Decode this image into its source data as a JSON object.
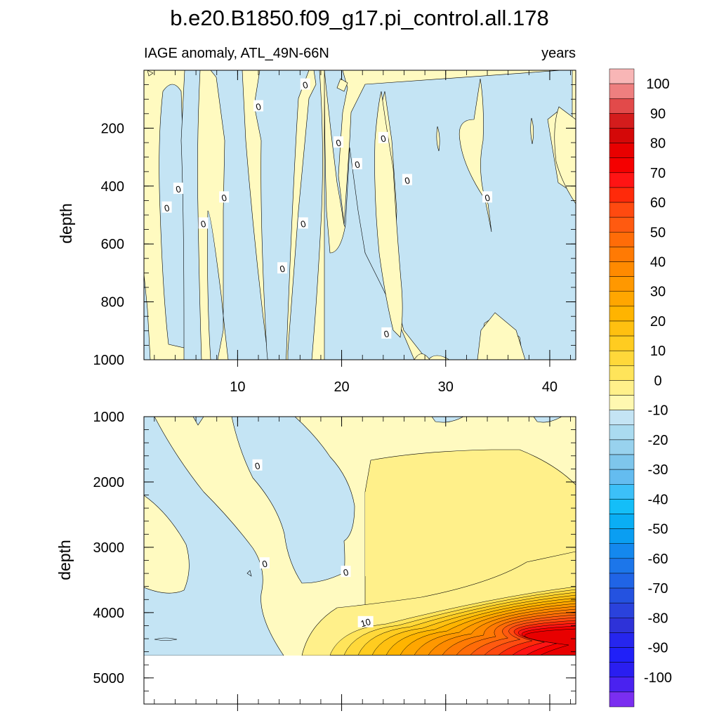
{
  "title": "b.e20.B1850.f09_g17.pi_control.all.178",
  "subtitle_left": "IAGE anomaly, ATL_49N-66N",
  "subtitle_right": "years",
  "chart_data": [
    {
      "type": "heatmap",
      "panel": "upper",
      "ylabel": "depth",
      "xlabel": "",
      "xlim": [
        1,
        42.5
      ],
      "ylim": [
        0,
        1000
      ],
      "y_reversed": true,
      "x_ticks": [
        "10",
        "20",
        "30",
        "40"
      ],
      "y_ticks": [
        "200",
        "400",
        "600",
        "800",
        "1000"
      ],
      "contour_labels": [
        {
          "text": "0",
          "x": 16.5,
          "y": 50
        },
        {
          "text": "0",
          "x": 12,
          "y": 125
        },
        {
          "text": "0",
          "x": 24,
          "y": 235
        },
        {
          "text": "0",
          "x": 19.7,
          "y": 250
        },
        {
          "text": "0",
          "x": 21.5,
          "y": 325
        },
        {
          "text": "0",
          "x": 26.3,
          "y": 380
        },
        {
          "text": "0",
          "x": 4.3,
          "y": 410
        },
        {
          "text": "0",
          "x": 8.7,
          "y": 440
        },
        {
          "text": "0",
          "x": 34,
          "y": 440
        },
        {
          "text": "0",
          "x": 3.2,
          "y": 475
        },
        {
          "text": "0",
          "x": 6.7,
          "y": 530
        },
        {
          "text": "0",
          "x": 16.3,
          "y": 530
        },
        {
          "text": "0",
          "x": 14.3,
          "y": 685
        },
        {
          "text": "0",
          "x": 24.3,
          "y": 910
        }
      ]
    },
    {
      "type": "heatmap",
      "panel": "lower",
      "ylabel": "depth",
      "xlabel": "",
      "xlim": [
        1,
        42.5
      ],
      "ylim": [
        1000,
        5400
      ],
      "y_reversed": true,
      "x_ticks": [
        "10",
        "20",
        "30",
        "40"
      ],
      "y_ticks": [
        "1000",
        "2000",
        "3000",
        "4000",
        "5000"
      ],
      "data_bottom_depth": 4650,
      "contour_labels": [
        {
          "text": "0",
          "x": 11.9,
          "y": 1750
        },
        {
          "text": "0",
          "x": 12.6,
          "y": 3250
        },
        {
          "text": "0",
          "x": 20.4,
          "y": 3380
        },
        {
          "text": "10",
          "x": 22.3,
          "y": 4150
        }
      ]
    }
  ],
  "colorbar": {
    "labels": [
      "100",
      "90",
      "80",
      "70",
      "60",
      "50",
      "40",
      "30",
      "20",
      "10",
      "0",
      "-10",
      "-20",
      "-30",
      "-40",
      "-50",
      "-60",
      "-70",
      "-80",
      "-90",
      "-100"
    ],
    "colors": [
      "#f8b6b6",
      "#ee7f7f",
      "#e24a4a",
      "#d41c1c",
      "#d40808",
      "#e80000",
      "#f50000",
      "#ff1414",
      "#ff2a0a",
      "#ff4a10",
      "#ff5a10",
      "#ff6c08",
      "#ff7a04",
      "#ff8a00",
      "#ff9800",
      "#ffa600",
      "#ffb400",
      "#ffc010",
      "#ffcc20",
      "#ffd83a",
      "#ffe45a",
      "#fff08a",
      "#fff8b0",
      "#c4e4f4",
      "#aadbf0",
      "#98d2ee",
      "#7ec6ec",
      "#64bcf0",
      "#3cc0f8",
      "#14bef8",
      "#0aaef4",
      "#0a9ef2",
      "#1488ee",
      "#1c76ea",
      "#2064e6",
      "#2452e0",
      "#2a42dc",
      "#2e32d8",
      "#2626ee",
      "#2020f8",
      "#2a1ef0",
      "#4a22f0",
      "#7a2ef0"
    ]
  },
  "colors": {
    "positive_small": "#fffac0",
    "negative_small": "#c4e4f4",
    "level_10": "#fff08a",
    "deep_red": "#e80000"
  }
}
